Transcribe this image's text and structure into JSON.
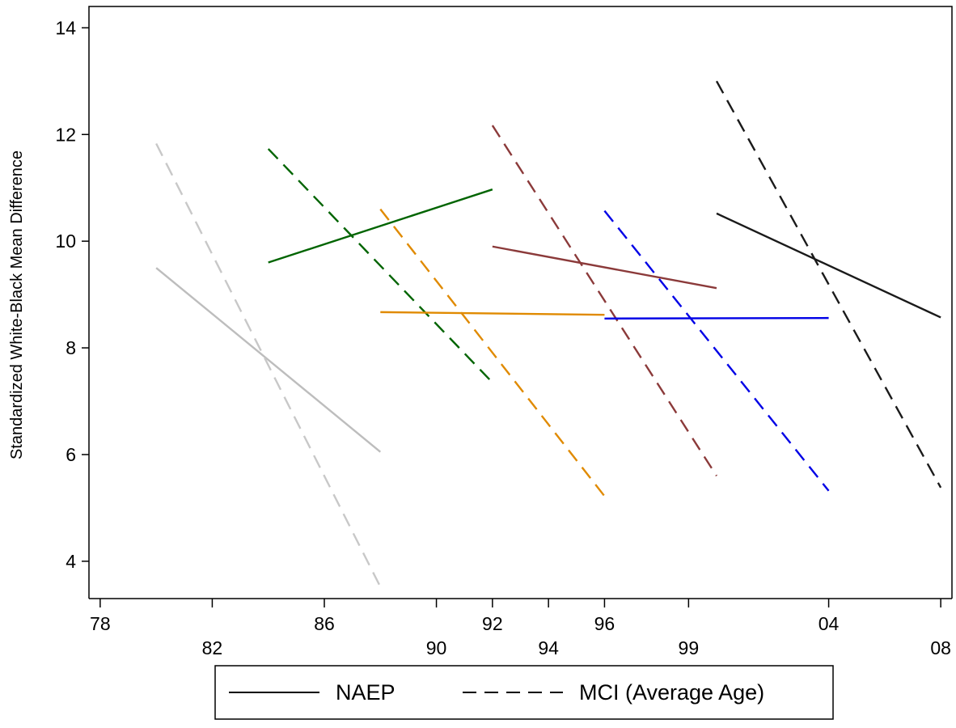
{
  "chart_data": {
    "type": "line",
    "ylabel": "Standardized White-Black Mean Difference",
    "xlabel": "",
    "ylim": [
      3.3,
      14.4
    ],
    "yticks": [
      4,
      6,
      8,
      10,
      12,
      14
    ],
    "xticks": [
      {
        "pos": 0,
        "label": "78",
        "row": 1
      },
      {
        "pos": 1,
        "label": "82",
        "row": 2
      },
      {
        "pos": 2,
        "label": "86",
        "row": 1
      },
      {
        "pos": 3,
        "label": "90",
        "row": 2
      },
      {
        "pos": 3.5,
        "label": "92",
        "row": 1
      },
      {
        "pos": 4,
        "label": "94",
        "row": 2
      },
      {
        "pos": 4.5,
        "label": "96",
        "row": 1
      },
      {
        "pos": 5.25,
        "label": "99",
        "row": 2
      },
      {
        "pos": 6.5,
        "label": "04",
        "row": 1
      },
      {
        "pos": 7.5,
        "label": "08",
        "row": 2
      }
    ],
    "xlim": [
      -0.1,
      7.6
    ],
    "grid": false,
    "legend_position": "bottom",
    "legend": [
      {
        "label": "NAEP",
        "style": "solid"
      },
      {
        "label": "MCI (Average Age)",
        "style": "dashed"
      }
    ],
    "series": [
      {
        "style": "solid",
        "color": "#bdbdbd",
        "points": [
          [
            0.5,
            9.5
          ],
          [
            2.5,
            6.05
          ]
        ]
      },
      {
        "style": "dashed",
        "color": "#c8c8c8",
        "points": [
          [
            0.5,
            11.83
          ],
          [
            2.5,
            3.52
          ]
        ]
      },
      {
        "style": "solid",
        "color": "#006400",
        "points": [
          [
            1.5,
            9.6
          ],
          [
            3.5,
            10.97
          ]
        ]
      },
      {
        "style": "dashed",
        "color": "#006400",
        "points": [
          [
            1.5,
            11.73
          ],
          [
            3.5,
            7.35
          ]
        ]
      },
      {
        "style": "solid",
        "color": "#e08a00",
        "points": [
          [
            2.5,
            8.67
          ],
          [
            4.5,
            8.62
          ]
        ]
      },
      {
        "style": "dashed",
        "color": "#e08a00",
        "points": [
          [
            2.5,
            10.6
          ],
          [
            4.5,
            5.22
          ]
        ]
      },
      {
        "style": "solid",
        "color": "#8b3a3a",
        "points": [
          [
            3.5,
            9.9
          ],
          [
            5.5,
            9.12
          ]
        ]
      },
      {
        "style": "dashed",
        "color": "#8b3a3a",
        "points": [
          [
            3.5,
            12.17
          ],
          [
            5.5,
            5.6
          ]
        ]
      },
      {
        "style": "solid",
        "color": "#0000e6",
        "points": [
          [
            4.5,
            8.55
          ],
          [
            6.5,
            8.56
          ]
        ]
      },
      {
        "style": "dashed",
        "color": "#0000e6",
        "points": [
          [
            4.5,
            10.57
          ],
          [
            6.5,
            5.32
          ]
        ]
      },
      {
        "style": "solid",
        "color": "#1a1a1a",
        "points": [
          [
            5.5,
            10.52
          ],
          [
            7.5,
            8.57
          ]
        ]
      },
      {
        "style": "dashed",
        "color": "#1a1a1a",
        "points": [
          [
            5.5,
            13.0
          ],
          [
            7.5,
            5.38
          ]
        ]
      }
    ]
  }
}
